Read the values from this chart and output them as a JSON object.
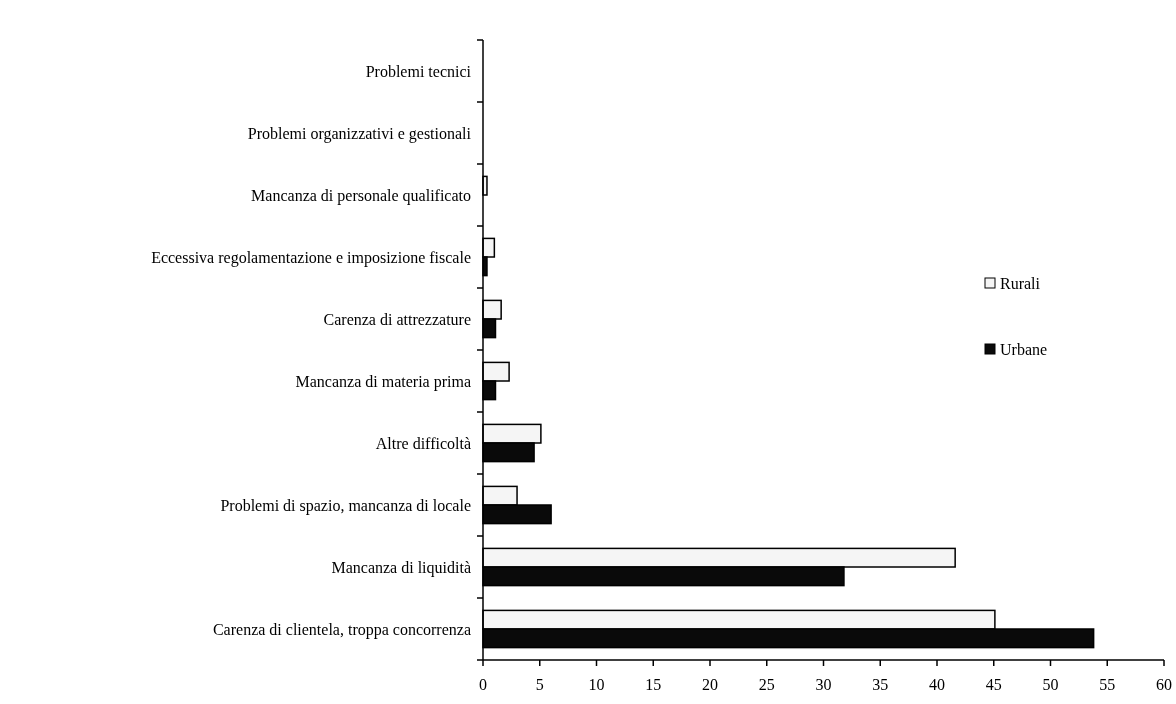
{
  "chart_data": {
    "type": "bar",
    "orientation": "horizontal",
    "categories": [
      "Problemi tecnici",
      "Problemi organizzativi e gestionali",
      "Mancanza di personale qualificato",
      "Eccessiva regolamentazione e imposizione fiscale",
      "Carenza di attrezzature",
      "Mancanza di materia prima",
      "Altre difficoltà",
      "Problemi di spazio, mancanza di locale",
      "Mancanza di liquidità",
      "Carenza di clientela, troppa concorrenza"
    ],
    "series": [
      {
        "name": "Rurali",
        "color": "#f5f5f5",
        "values": [
          0,
          0,
          0.35,
          1.0,
          1.6,
          2.3,
          5.1,
          3.0,
          41.6,
          45.1
        ]
      },
      {
        "name": "Urbane",
        "color": "#0a0a0a",
        "values": [
          0,
          0,
          0,
          0.35,
          1.1,
          1.1,
          4.5,
          6.0,
          31.8,
          53.8
        ]
      }
    ],
    "xlim": [
      0,
      60
    ],
    "xticks": [
      0,
      5,
      10,
      15,
      20,
      25,
      30,
      35,
      40,
      45,
      50,
      55,
      60
    ],
    "legend": "right",
    "grid": false
  }
}
